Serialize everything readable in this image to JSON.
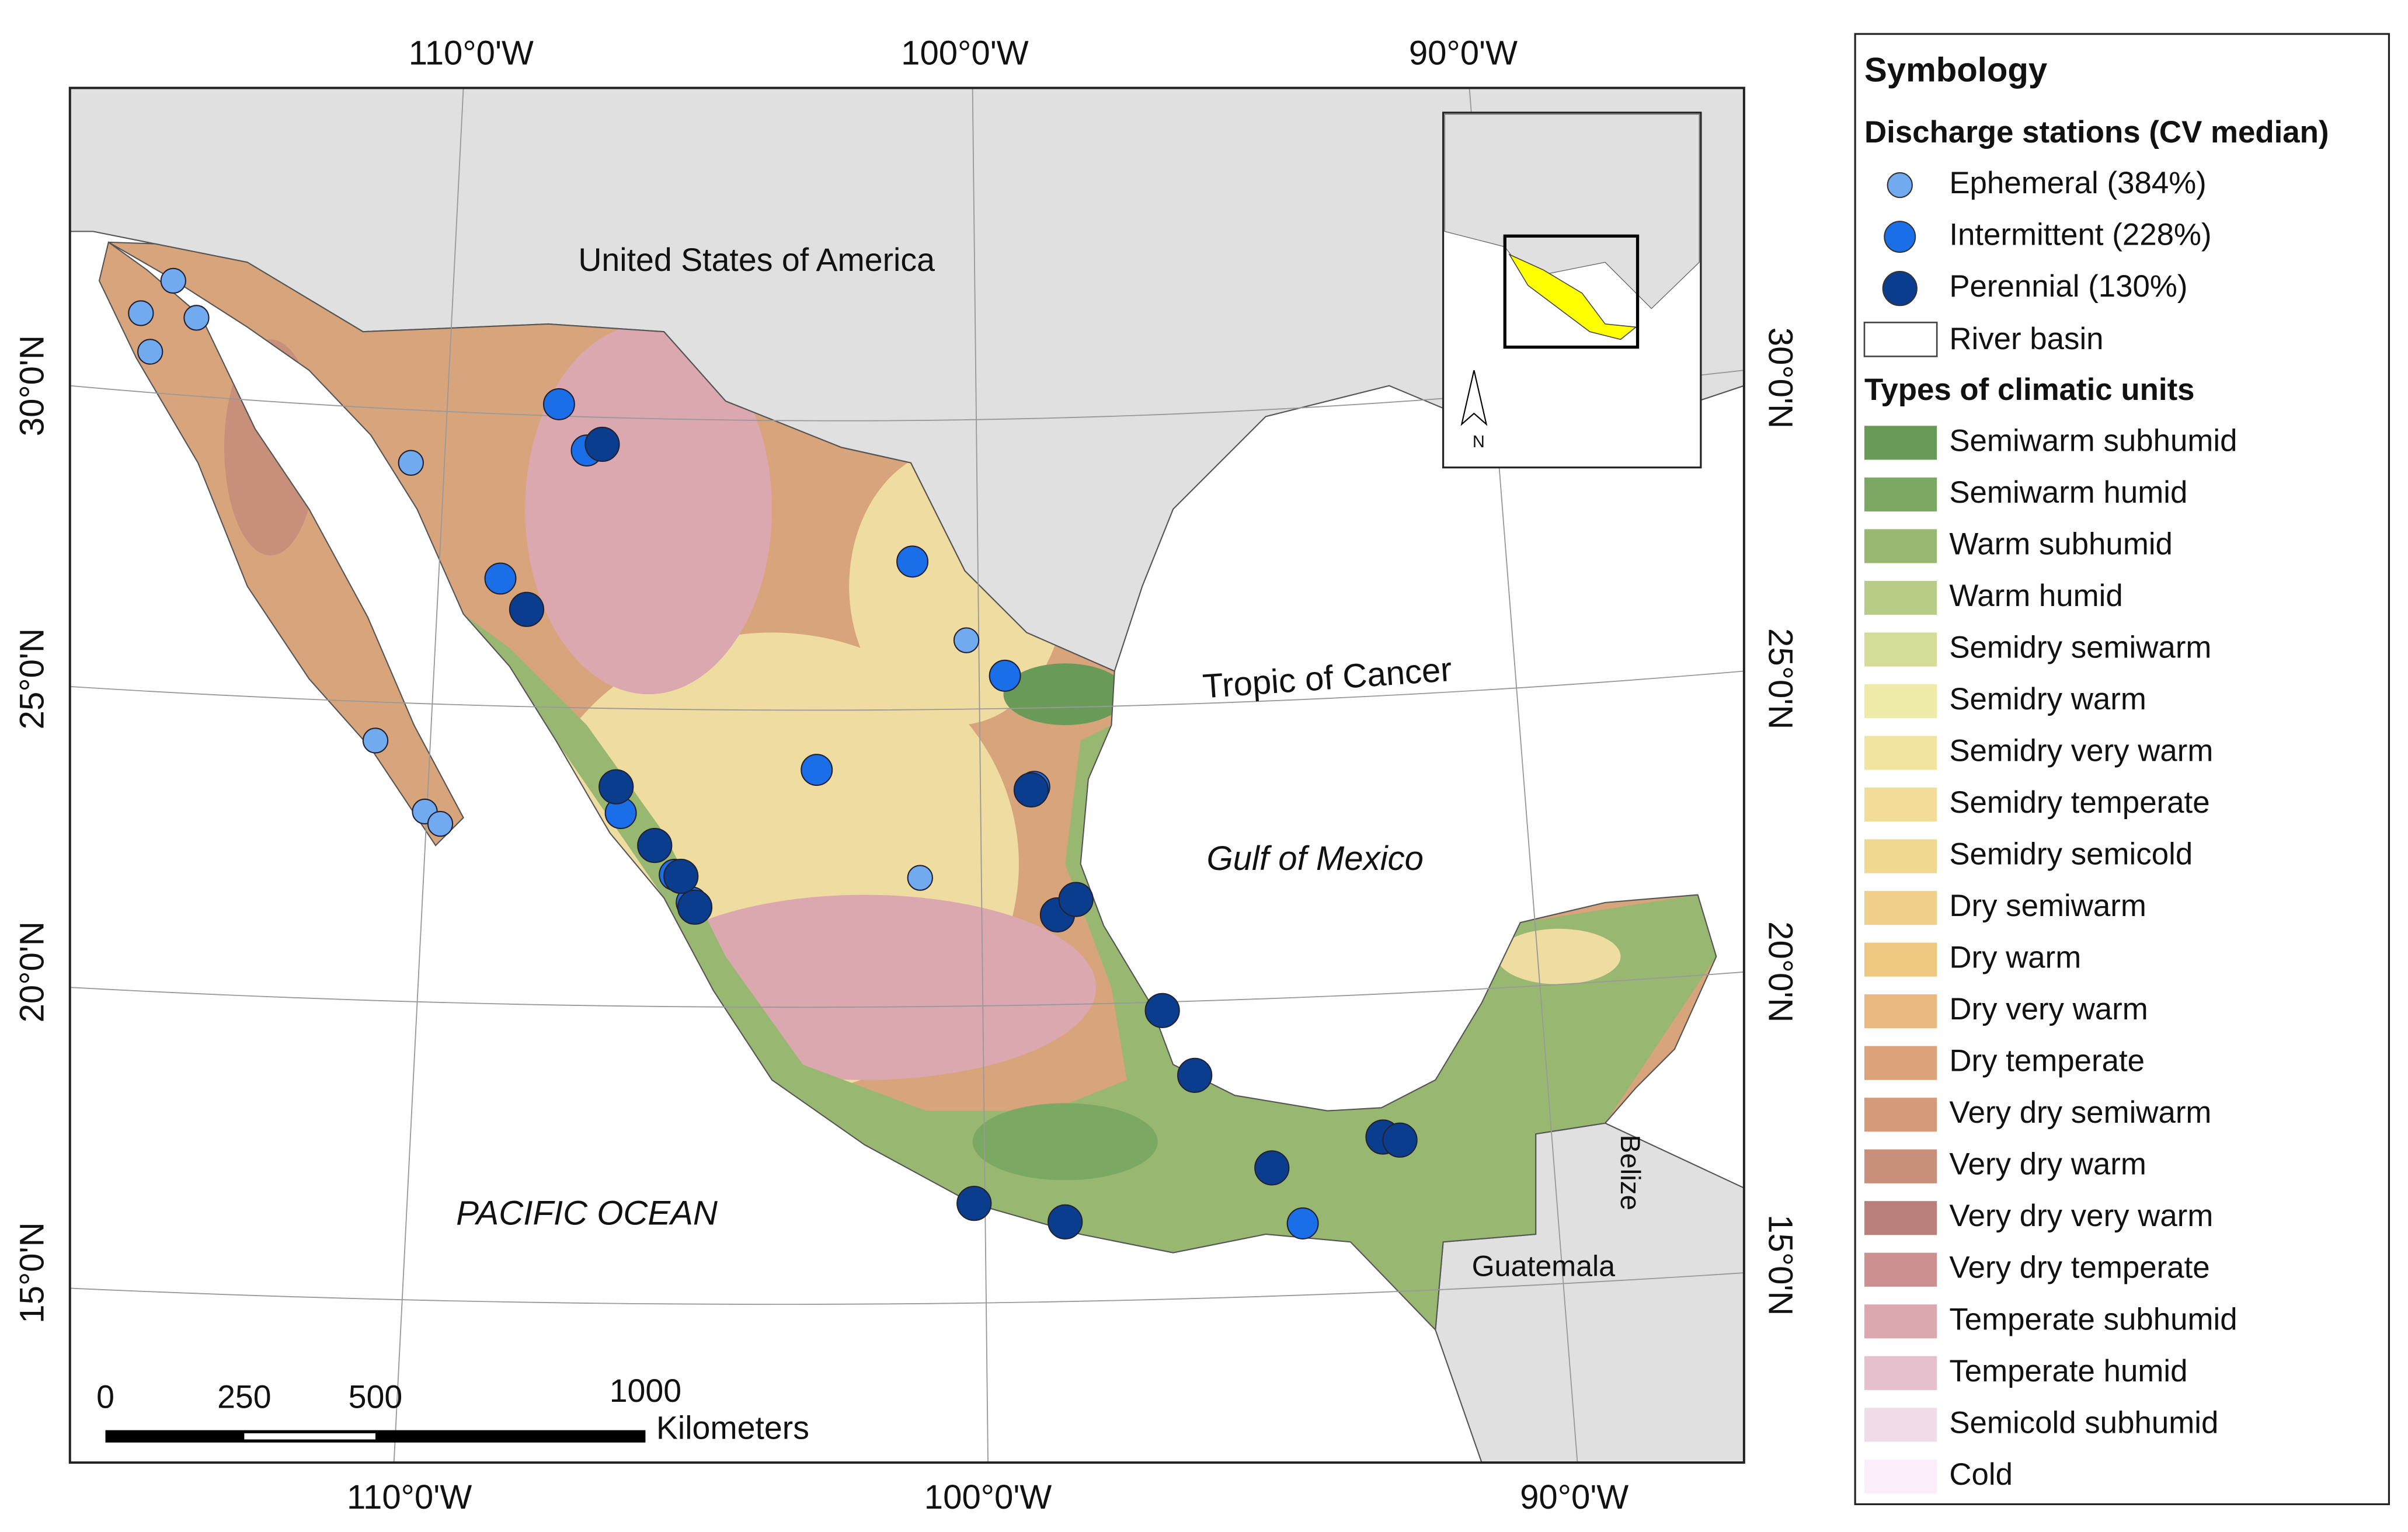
{
  "graticule": {
    "top": [
      "110°0'W",
      "100°0'W",
      "90°0'W"
    ],
    "bottom": [
      "110°0'W",
      "100°0'W",
      "90°0'W"
    ],
    "left": [
      "30°0'N",
      "25°0'N",
      "20°0'N",
      "15°0'N"
    ],
    "right": [
      "30°0'N",
      "25°0'N",
      "20°0'N",
      "15°0'N"
    ]
  },
  "places": {
    "usa": "United States of America",
    "tropic": "Tropic of Cancer",
    "gulf": "Gulf of Mexico",
    "pacific": "PACIFIC OCEAN",
    "belize": "Belize",
    "guatemala": "Guatemala",
    "north": "N"
  },
  "scale_bar": {
    "labels": [
      "0",
      "250",
      "500",
      "1000"
    ],
    "unit": "Kilometers"
  },
  "legend": {
    "title": "Symbology",
    "stations_title": "Discharge stations (CV median)",
    "stations": [
      {
        "label": "Ephemeral (384%)",
        "color": "#72aaf0"
      },
      {
        "label": "Intermittent (228%)",
        "color": "#1a6fe8"
      },
      {
        "label": "Perennial (130%)",
        "color": "#0b3d8f"
      }
    ],
    "river_basin": "River basin",
    "climate_title": "Types of climatic units",
    "climate": [
      {
        "label": "Semiwarm subhumid",
        "color": "#6a9a58"
      },
      {
        "label": "Semiwarm humid",
        "color": "#7ba863"
      },
      {
        "label": "Warm subhumid",
        "color": "#98b871"
      },
      {
        "label": "Warm humid",
        "color": "#b8cc88"
      },
      {
        "label": "Semidry semiwarm",
        "color": "#d4dc98"
      },
      {
        "label": "Semidry warm",
        "color": "#eeeaa8"
      },
      {
        "label": "Semidry very warm",
        "color": "#f0e4a0"
      },
      {
        "label": "Semidry temperate",
        "color": "#f2dc98"
      },
      {
        "label": "Semidry semicold",
        "color": "#f0d890"
      },
      {
        "label": "Dry semiwarm",
        "color": "#f0cf8a"
      },
      {
        "label": "Dry warm",
        "color": "#eec880"
      },
      {
        "label": "Dry very warm",
        "color": "#e8b880"
      },
      {
        "label": "Dry temperate",
        "color": "#dca27a"
      },
      {
        "label": "Very dry semiwarm",
        "color": "#d49a7a"
      },
      {
        "label": "Very dry warm",
        "color": "#c8907a"
      },
      {
        "label": "Very dry very warm",
        "color": "#b88078"
      },
      {
        "label": "Very dry temperate",
        "color": "#cc9090"
      },
      {
        "label": "Temperate subhumid",
        "color": "#dca8b0"
      },
      {
        "label": "Temperate humid",
        "color": "#e6c0cc"
      },
      {
        "label": "Semicold subhumid",
        "color": "#f0dce8"
      },
      {
        "label": "Cold",
        "color": "#fbeefa"
      }
    ]
  }
}
